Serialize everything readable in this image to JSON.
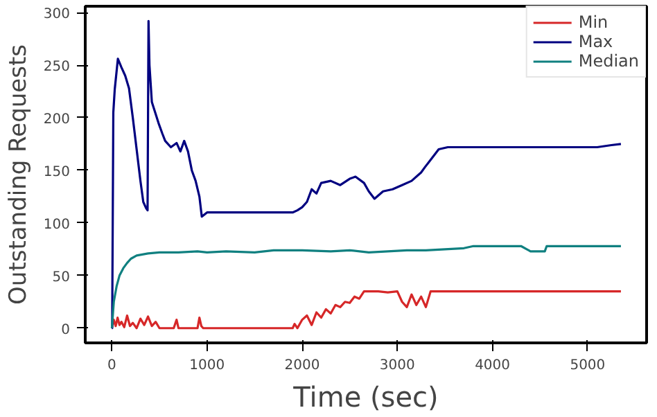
{
  "chart_data": {
    "type": "line",
    "xlabel": "Time (sec)",
    "ylabel": "Outstanding Requests",
    "xlim": [
      -280,
      5620
    ],
    "ylim": [
      -14,
      306
    ],
    "xticks": [
      0,
      1000,
      2000,
      3000,
      4000,
      5000
    ],
    "yticks": [
      0,
      50,
      100,
      150,
      200,
      250,
      300
    ],
    "grid": false,
    "legend": "top right",
    "line_style": "solid",
    "marker": "none",
    "series": [
      {
        "name": "Min",
        "color": "#d62728",
        "x": [
          0,
          20,
          40,
          60,
          80,
          100,
          130,
          160,
          190,
          220,
          260,
          300,
          340,
          380,
          420,
          460,
          500,
          650,
          680,
          700,
          720,
          900,
          920,
          940,
          960,
          1900,
          1920,
          1950,
          2000,
          2050,
          2100,
          2150,
          2200,
          2250,
          2300,
          2350,
          2400,
          2450,
          2500,
          2550,
          2600,
          2650,
          2700,
          2800,
          2900,
          3000,
          3050,
          3100,
          3150,
          3200,
          3250,
          3300,
          3350,
          3400,
          4000,
          5000,
          5350
        ],
        "values": [
          0,
          8,
          2,
          10,
          3,
          6,
          1,
          12,
          2,
          5,
          0,
          9,
          3,
          11,
          2,
          6,
          0,
          0,
          8,
          0,
          0,
          0,
          10,
          2,
          0,
          0,
          4,
          0,
          8,
          12,
          3,
          15,
          10,
          18,
          14,
          22,
          20,
          25,
          24,
          30,
          28,
          35,
          35,
          35,
          34,
          35,
          25,
          20,
          32,
          22,
          30,
          20,
          35,
          35,
          35,
          35,
          35
        ]
      },
      {
        "name": "Max",
        "color": "#000080",
        "x": [
          0,
          3,
          15,
          30,
          63,
          100,
          140,
          180,
          220,
          260,
          300,
          330,
          360,
          375,
          385,
          395,
          420,
          490,
          530,
          560,
          620,
          680,
          720,
          760,
          800,
          840,
          880,
          920,
          945,
          1000,
          1500,
          1900,
          1950,
          2000,
          2050,
          2100,
          2150,
          2200,
          2300,
          2400,
          2500,
          2560,
          2650,
          2700,
          2760,
          2850,
          2950,
          3050,
          3150,
          3250,
          3290,
          3350,
          3435,
          3530,
          4000,
          4800,
          5100,
          5250,
          5350
        ],
        "values": [
          0,
          0,
          205,
          227,
          256,
          248,
          240,
          228,
          200,
          170,
          140,
          120,
          114,
          112,
          292,
          250,
          215,
          195,
          185,
          178,
          172,
          176,
          168,
          178,
          168,
          150,
          140,
          125,
          106,
          110,
          110,
          110,
          112,
          115,
          120,
          132,
          128,
          138,
          140,
          136,
          142,
          144,
          138,
          130,
          123,
          130,
          132,
          136,
          140,
          148,
          153,
          160,
          170,
          172,
          172,
          172,
          172,
          174,
          175
        ]
      },
      {
        "name": "Median",
        "color": "#108080",
        "x": [
          0,
          20,
          50,
          80,
          120,
          160,
          200,
          260,
          320,
          380,
          500,
          700,
          900,
          1000,
          1200,
          1500,
          1700,
          2000,
          2300,
          2500,
          2700,
          2900,
          3100,
          3300,
          3500,
          3700,
          3800,
          4000,
          4300,
          4400,
          4420,
          4550,
          4570,
          4700,
          5000,
          5350
        ],
        "values": [
          0,
          25,
          40,
          50,
          57,
          62,
          66,
          69,
          70,
          71,
          72,
          72,
          73,
          72,
          73,
          72,
          74,
          74,
          73,
          74,
          72,
          73,
          74,
          74,
          75,
          76,
          78,
          78,
          78,
          73,
          73,
          73,
          78,
          78,
          78,
          78
        ]
      }
    ]
  }
}
